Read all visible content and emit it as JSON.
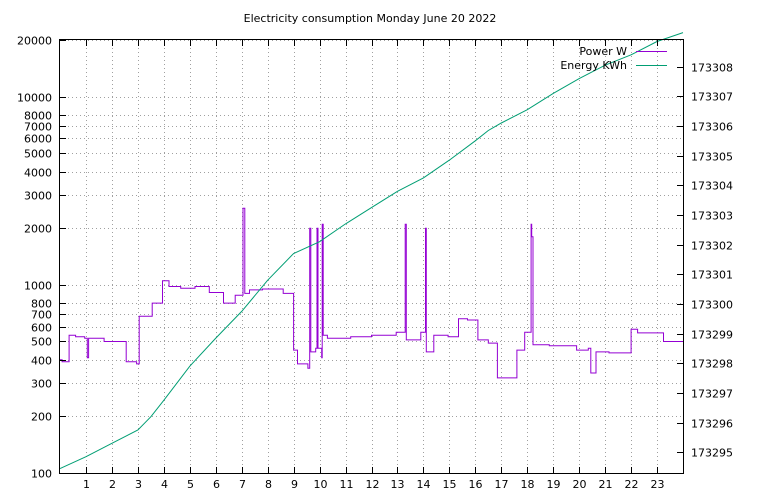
{
  "chart_data": {
    "type": "line",
    "title": "Electricity consumption Monday June 20 2022",
    "xlabel": "",
    "ylabel": "",
    "x_ticks": [
      1,
      2,
      3,
      4,
      5,
      6,
      7,
      8,
      9,
      10,
      11,
      12,
      13,
      14,
      15,
      16,
      17,
      18,
      19,
      20,
      21,
      22,
      23
    ],
    "xlim": [
      0,
      24
    ],
    "y_left": {
      "scale": "log",
      "lim": [
        100,
        20000
      ],
      "ticks": [
        100,
        200,
        300,
        400,
        500,
        600,
        700,
        800,
        1000,
        2000,
        3000,
        4000,
        5000,
        6000,
        7000,
        8000,
        10000,
        20000
      ]
    },
    "y_right": {
      "scale": "linear",
      "lim": [
        173294.3,
        173308.9
      ],
      "ticks": [
        173295,
        173296,
        173297,
        173298,
        173299,
        173300,
        173301,
        173302,
        173303,
        173304,
        173305,
        173306,
        173307,
        173308
      ]
    },
    "grid": true,
    "legend_position": "top-right",
    "series": [
      {
        "name": "Power W",
        "axis": "left",
        "color": "#9400d3",
        "step": true,
        "points": [
          [
            0.0,
            400
          ],
          [
            0.08,
            390
          ],
          [
            0.35,
            540
          ],
          [
            0.6,
            530
          ],
          [
            0.95,
            520
          ],
          [
            1.05,
            410
          ],
          [
            1.1,
            520
          ],
          [
            1.7,
            500
          ],
          [
            2.55,
            390
          ],
          [
            2.95,
            380
          ],
          [
            3.05,
            680
          ],
          [
            3.55,
            800
          ],
          [
            3.95,
            1050
          ],
          [
            4.2,
            980
          ],
          [
            4.65,
            960
          ],
          [
            5.2,
            980
          ],
          [
            5.75,
            910
          ],
          [
            6.3,
            800
          ],
          [
            6.75,
            880
          ],
          [
            7.05,
            2550
          ],
          [
            7.12,
            900
          ],
          [
            7.3,
            940
          ],
          [
            7.8,
            950
          ],
          [
            8.6,
            900
          ],
          [
            9.0,
            450
          ],
          [
            9.15,
            380
          ],
          [
            9.55,
            360
          ],
          [
            9.62,
            2000
          ],
          [
            9.66,
            440
          ],
          [
            9.85,
            460
          ],
          [
            9.9,
            2000
          ],
          [
            9.94,
            460
          ],
          [
            10.08,
            410
          ],
          [
            10.1,
            2100
          ],
          [
            10.14,
            540
          ],
          [
            10.3,
            520
          ],
          [
            11.2,
            530
          ],
          [
            12.0,
            540
          ],
          [
            12.95,
            560
          ],
          [
            13.3,
            2100
          ],
          [
            13.34,
            510
          ],
          [
            13.9,
            560
          ],
          [
            14.08,
            2000
          ],
          [
            14.11,
            440
          ],
          [
            14.4,
            540
          ],
          [
            14.95,
            530
          ],
          [
            15.35,
            660
          ],
          [
            15.7,
            650
          ],
          [
            15.95,
            650
          ],
          [
            16.1,
            510
          ],
          [
            16.5,
            490
          ],
          [
            16.85,
            320
          ],
          [
            17.6,
            450
          ],
          [
            17.9,
            560
          ],
          [
            18.15,
            2100
          ],
          [
            18.17,
            1800
          ],
          [
            18.22,
            480
          ],
          [
            18.85,
            475
          ],
          [
            19.9,
            450
          ],
          [
            20.35,
            460
          ],
          [
            20.45,
            340
          ],
          [
            20.65,
            440
          ],
          [
            21.15,
            435
          ],
          [
            22.0,
            580
          ],
          [
            22.25,
            555
          ],
          [
            23.25,
            500
          ],
          [
            24.0,
            500
          ]
        ]
      },
      {
        "name": "Energy KWh",
        "axis": "right",
        "color": "#009e73",
        "step": false,
        "points": [
          [
            0.0,
            173294.45
          ],
          [
            1.0,
            173294.85
          ],
          [
            2.0,
            173295.3
          ],
          [
            3.0,
            173295.75
          ],
          [
            3.5,
            173296.2
          ],
          [
            4.0,
            173296.75
          ],
          [
            5.0,
            173297.9
          ],
          [
            6.0,
            173298.85
          ],
          [
            7.0,
            173299.75
          ],
          [
            8.0,
            173300.8
          ],
          [
            9.0,
            173301.7
          ],
          [
            10.0,
            173302.1
          ],
          [
            11.0,
            173302.7
          ],
          [
            12.0,
            173303.25
          ],
          [
            13.0,
            173303.8
          ],
          [
            14.0,
            173304.25
          ],
          [
            15.0,
            173304.85
          ],
          [
            16.0,
            173305.5
          ],
          [
            16.5,
            173305.85
          ],
          [
            17.0,
            173306.1
          ],
          [
            18.0,
            173306.55
          ],
          [
            19.0,
            173307.1
          ],
          [
            20.0,
            173307.6
          ],
          [
            21.0,
            173308.05
          ],
          [
            22.0,
            173308.4
          ],
          [
            23.0,
            173308.85
          ],
          [
            24.0,
            173309.15
          ]
        ]
      }
    ]
  }
}
